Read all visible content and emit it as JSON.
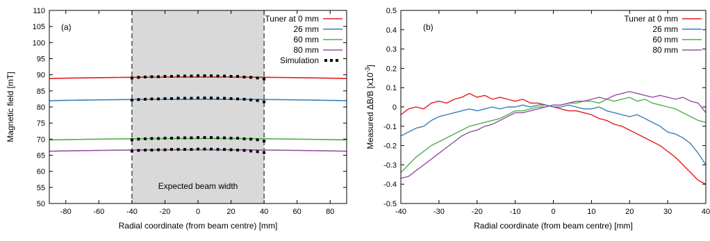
{
  "chart_data": [
    {
      "type": "line",
      "panel_label": "(a)",
      "xlabel": "Radial coordinate (from beam centre) [mm]",
      "ylabel": "Magnetic field [mT]",
      "xlim": [
        -90,
        90
      ],
      "ylim": [
        50,
        110
      ],
      "xticks": [
        -80,
        -60,
        -40,
        -20,
        0,
        20,
        40,
        60,
        80
      ],
      "yticks": [
        50,
        55,
        60,
        65,
        70,
        75,
        80,
        85,
        90,
        95,
        100,
        105,
        110
      ],
      "grid": false,
      "legend_position": "top-right",
      "shaded_region": {
        "x0": -40,
        "x1": 40,
        "label": "Expected beam width",
        "color": "#d9d9d9"
      },
      "series": [
        {
          "name": "Tuner at 0 mm",
          "color": "#e41a1c",
          "center": 89.3,
          "edge_drop": 0.45
        },
        {
          "name": "26 mm",
          "color": "#377eb8",
          "center": 82.4,
          "edge_drop": 0.45
        },
        {
          "name": "60 mm",
          "color": "#4daf4a",
          "center": 70.2,
          "edge_drop": 0.45
        },
        {
          "name": "80 mm",
          "color": "#984ea3",
          "center": 66.7,
          "edge_drop": 0.45
        }
      ],
      "simulation": {
        "name": "Simulation",
        "color": "#000000",
        "x": [
          -40,
          -36,
          -32,
          -28,
          -24,
          -20,
          -16,
          -12,
          -8,
          -4,
          0,
          4,
          8,
          12,
          16,
          20,
          24,
          28,
          32,
          36,
          40
        ],
        "levels": [
          [
            89.0,
            89.2,
            89.3,
            89.4,
            89.4,
            89.5,
            89.5,
            89.6,
            89.6,
            89.6,
            89.7,
            89.7,
            89.7,
            89.6,
            89.6,
            89.5,
            89.5,
            89.3,
            89.2,
            89.0,
            88.7
          ],
          [
            82.1,
            82.3,
            82.4,
            82.5,
            82.5,
            82.6,
            82.6,
            82.7,
            82.7,
            82.7,
            82.8,
            82.8,
            82.8,
            82.7,
            82.7,
            82.6,
            82.5,
            82.4,
            82.2,
            82.0,
            81.6
          ],
          [
            69.8,
            70.0,
            70.1,
            70.2,
            70.2,
            70.3,
            70.3,
            70.4,
            70.4,
            70.4,
            70.5,
            70.5,
            70.5,
            70.4,
            70.4,
            70.3,
            70.3,
            70.1,
            70.0,
            69.8,
            69.4
          ],
          [
            66.3,
            66.5,
            66.6,
            66.6,
            66.7,
            66.7,
            66.8,
            66.8,
            66.8,
            66.8,
            66.9,
            66.9,
            66.9,
            66.8,
            66.8,
            66.7,
            66.6,
            66.5,
            66.3,
            66.1,
            65.8
          ]
        ]
      }
    },
    {
      "type": "line",
      "panel_label": "(b)",
      "xlabel": "Radial coordinate (from beam centre) [mm]",
      "ylabel": "Measured ΔB/B [x10",
      "ylabel_sup": "-3",
      "ylabel_end": "]",
      "xlim": [
        -40,
        40
      ],
      "ylim": [
        -0.5,
        0.5
      ],
      "xticks": [
        -40,
        -30,
        -20,
        -10,
        0,
        10,
        20,
        30,
        40
      ],
      "yticks": [
        -0.5,
        -0.4,
        -0.3,
        -0.2,
        -0.1,
        0,
        0.1,
        0.2,
        0.3,
        0.4,
        0.5
      ],
      "grid": false,
      "legend_position": "top-right",
      "series": [
        {
          "name": "Tuner at 0 mm",
          "color": "#e41a1c",
          "points": [
            [
              -40,
              -0.04
            ],
            [
              -38,
              -0.01
            ],
            [
              -36,
              0.0
            ],
            [
              -34,
              -0.01
            ],
            [
              -32,
              0.02
            ],
            [
              -30,
              0.03
            ],
            [
              -28,
              0.02
            ],
            [
              -26,
              0.04
            ],
            [
              -24,
              0.05
            ],
            [
              -22,
              0.07
            ],
            [
              -20,
              0.05
            ],
            [
              -18,
              0.06
            ],
            [
              -16,
              0.04
            ],
            [
              -14,
              0.05
            ],
            [
              -12,
              0.04
            ],
            [
              -10,
              0.03
            ],
            [
              -8,
              0.04
            ],
            [
              -6,
              0.02
            ],
            [
              -4,
              0.02
            ],
            [
              -2,
              0.01
            ],
            [
              0,
              0.0
            ],
            [
              2,
              -0.01
            ],
            [
              4,
              -0.02
            ],
            [
              6,
              -0.02
            ],
            [
              8,
              -0.03
            ],
            [
              10,
              -0.04
            ],
            [
              12,
              -0.06
            ],
            [
              14,
              -0.07
            ],
            [
              16,
              -0.09
            ],
            [
              18,
              -0.1
            ],
            [
              20,
              -0.12
            ],
            [
              22,
              -0.14
            ],
            [
              24,
              -0.16
            ],
            [
              26,
              -0.18
            ],
            [
              28,
              -0.2
            ],
            [
              30,
              -0.23
            ],
            [
              32,
              -0.26
            ],
            [
              34,
              -0.3
            ],
            [
              36,
              -0.34
            ],
            [
              38,
              -0.38
            ],
            [
              40,
              -0.4
            ]
          ]
        },
        {
          "name": "26 mm",
          "color": "#377eb8",
          "points": [
            [
              -40,
              -0.15
            ],
            [
              -38,
              -0.13
            ],
            [
              -36,
              -0.11
            ],
            [
              -34,
              -0.1
            ],
            [
              -32,
              -0.07
            ],
            [
              -30,
              -0.05
            ],
            [
              -28,
              -0.04
            ],
            [
              -26,
              -0.03
            ],
            [
              -24,
              -0.02
            ],
            [
              -22,
              -0.01
            ],
            [
              -20,
              -0.02
            ],
            [
              -18,
              -0.01
            ],
            [
              -16,
              0.0
            ],
            [
              -14,
              -0.01
            ],
            [
              -12,
              0.0
            ],
            [
              -10,
              0.0
            ],
            [
              -8,
              0.01
            ],
            [
              -6,
              0.0
            ],
            [
              -4,
              0.01
            ],
            [
              -2,
              0.01
            ],
            [
              0,
              0.0
            ],
            [
              2,
              0.0
            ],
            [
              4,
              0.01
            ],
            [
              6,
              0.0
            ],
            [
              8,
              -0.01
            ],
            [
              10,
              -0.01
            ],
            [
              12,
              0.0
            ],
            [
              14,
              -0.02
            ],
            [
              16,
              -0.03
            ],
            [
              18,
              -0.04
            ],
            [
              20,
              -0.05
            ],
            [
              22,
              -0.04
            ],
            [
              24,
              -0.06
            ],
            [
              26,
              -0.08
            ],
            [
              28,
              -0.1
            ],
            [
              30,
              -0.13
            ],
            [
              32,
              -0.14
            ],
            [
              34,
              -0.16
            ],
            [
              36,
              -0.19
            ],
            [
              38,
              -0.24
            ],
            [
              40,
              -0.3
            ]
          ]
        },
        {
          "name": "60 mm",
          "color": "#4daf4a",
          "points": [
            [
              -40,
              -0.34
            ],
            [
              -38,
              -0.3
            ],
            [
              -36,
              -0.26
            ],
            [
              -34,
              -0.23
            ],
            [
              -32,
              -0.2
            ],
            [
              -30,
              -0.18
            ],
            [
              -28,
              -0.16
            ],
            [
              -26,
              -0.14
            ],
            [
              -24,
              -0.12
            ],
            [
              -22,
              -0.1
            ],
            [
              -20,
              -0.09
            ],
            [
              -18,
              -0.08
            ],
            [
              -16,
              -0.07
            ],
            [
              -14,
              -0.06
            ],
            [
              -12,
              -0.04
            ],
            [
              -10,
              -0.02
            ],
            [
              -8,
              -0.02
            ],
            [
              -6,
              -0.01
            ],
            [
              -4,
              0.0
            ],
            [
              -2,
              0.0
            ],
            [
              0,
              0.01
            ],
            [
              2,
              0.01
            ],
            [
              4,
              0.02
            ],
            [
              6,
              0.02
            ],
            [
              8,
              0.03
            ],
            [
              10,
              0.03
            ],
            [
              12,
              0.02
            ],
            [
              14,
              0.04
            ],
            [
              16,
              0.03
            ],
            [
              18,
              0.04
            ],
            [
              20,
              0.05
            ],
            [
              22,
              0.03
            ],
            [
              24,
              0.04
            ],
            [
              26,
              0.02
            ],
            [
              28,
              0.01
            ],
            [
              30,
              0.0
            ],
            [
              32,
              -0.01
            ],
            [
              34,
              -0.03
            ],
            [
              36,
              -0.05
            ],
            [
              38,
              -0.07
            ],
            [
              40,
              -0.08
            ]
          ]
        },
        {
          "name": "80 mm",
          "color": "#984ea3",
          "points": [
            [
              -40,
              -0.37
            ],
            [
              -38,
              -0.36
            ],
            [
              -36,
              -0.33
            ],
            [
              -34,
              -0.3
            ],
            [
              -32,
              -0.27
            ],
            [
              -30,
              -0.24
            ],
            [
              -28,
              -0.21
            ],
            [
              -26,
              -0.18
            ],
            [
              -24,
              -0.15
            ],
            [
              -22,
              -0.13
            ],
            [
              -20,
              -0.12
            ],
            [
              -18,
              -0.1
            ],
            [
              -16,
              -0.09
            ],
            [
              -14,
              -0.07
            ],
            [
              -12,
              -0.05
            ],
            [
              -10,
              -0.03
            ],
            [
              -8,
              -0.03
            ],
            [
              -6,
              -0.02
            ],
            [
              -4,
              -0.01
            ],
            [
              -2,
              0.0
            ],
            [
              0,
              0.01
            ],
            [
              2,
              0.01
            ],
            [
              4,
              0.02
            ],
            [
              6,
              0.03
            ],
            [
              8,
              0.03
            ],
            [
              10,
              0.04
            ],
            [
              12,
              0.05
            ],
            [
              14,
              0.04
            ],
            [
              16,
              0.06
            ],
            [
              18,
              0.07
            ],
            [
              20,
              0.08
            ],
            [
              22,
              0.07
            ],
            [
              24,
              0.06
            ],
            [
              26,
              0.05
            ],
            [
              28,
              0.06
            ],
            [
              30,
              0.05
            ],
            [
              32,
              0.04
            ],
            [
              34,
              0.05
            ],
            [
              36,
              0.03
            ],
            [
              38,
              0.02
            ],
            [
              40,
              -0.03
            ]
          ]
        }
      ]
    }
  ]
}
